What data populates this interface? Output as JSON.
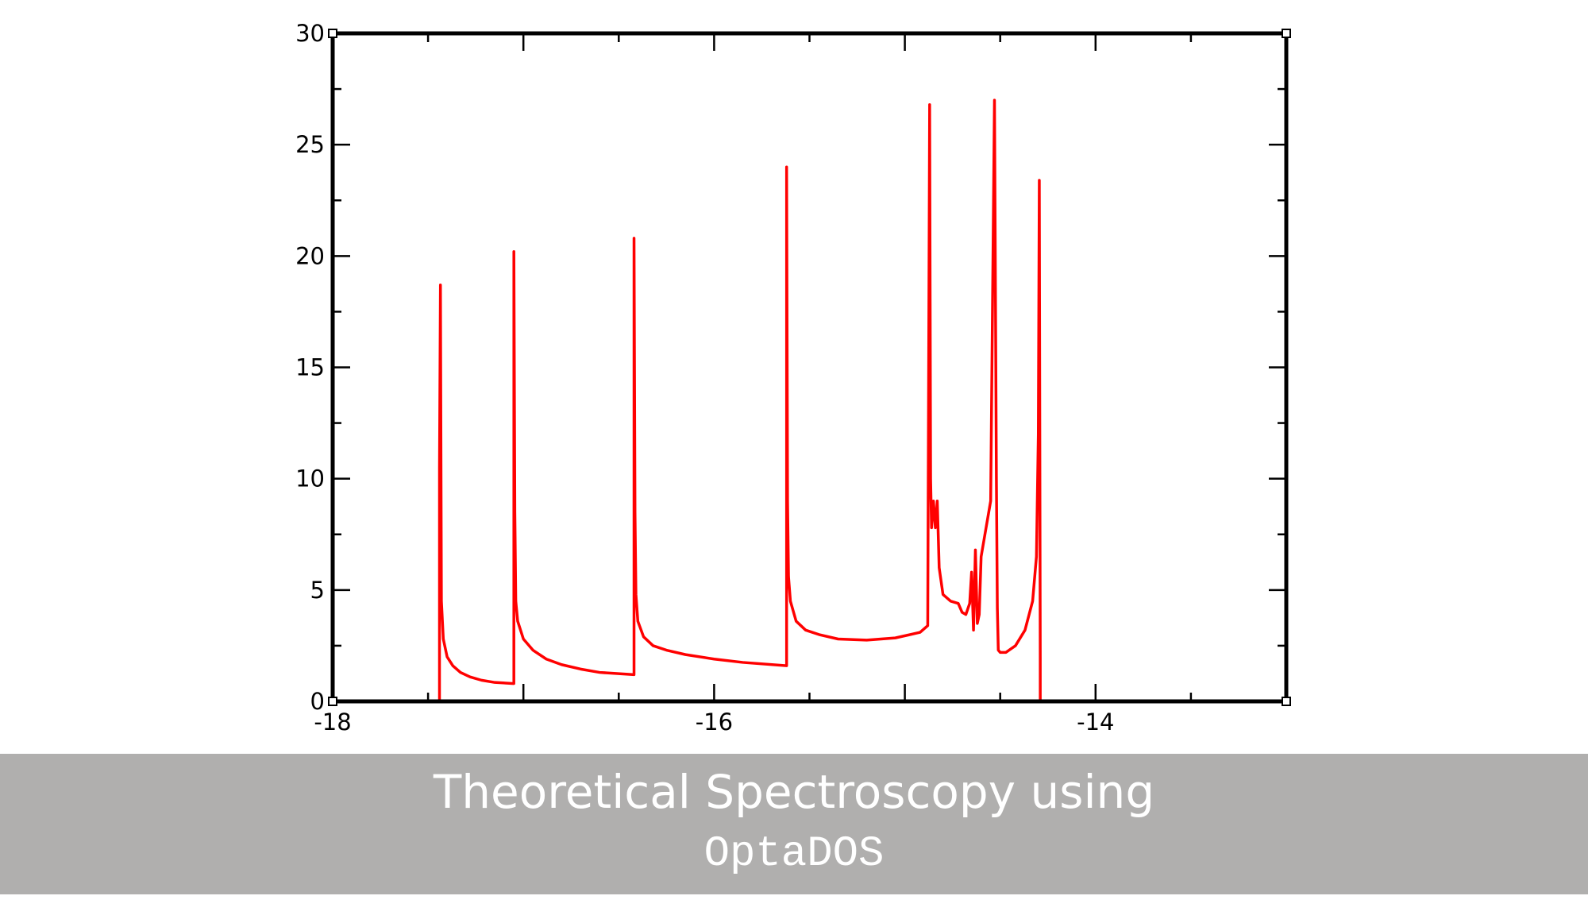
{
  "chart_data": {
    "type": "line",
    "title": "",
    "xlabel": "",
    "ylabel": "",
    "xlim": [
      -18,
      -13
    ],
    "ylim": [
      0,
      30
    ],
    "x_major_ticks": [
      -18,
      -16,
      -14
    ],
    "x_tick_labels": [
      "-18",
      "-16",
      "-14"
    ],
    "y_major_ticks": [
      0,
      5,
      10,
      15,
      20,
      25,
      30
    ],
    "y_tick_labels": [
      "0",
      "5",
      "10",
      "15",
      "20",
      "25",
      "30"
    ],
    "grid": false,
    "line_color": "#ff0000",
    "series": [
      {
        "x": [
          -17.44,
          -17.44,
          -17.435,
          -17.43,
          -17.42,
          -17.4,
          -17.37,
          -17.33,
          -17.28,
          -17.22,
          -17.15,
          -17.05,
          -17.05,
          -17.045,
          -17.04,
          -17.03,
          -17.0,
          -16.95,
          -16.88,
          -16.8,
          -16.7,
          -16.6,
          -16.42,
          -16.42,
          -16.415,
          -16.41,
          -16.4,
          -16.37,
          -16.32,
          -16.25,
          -16.15,
          -16.0,
          -15.85,
          -15.62,
          -15.62,
          -15.615,
          -15.61,
          -15.6,
          -15.57,
          -15.52,
          -15.45,
          -15.35,
          -15.2,
          -15.05,
          -14.92,
          -14.88,
          -14.87,
          -14.865,
          -14.86,
          -14.85,
          -14.84,
          -14.83,
          -14.82,
          -14.8,
          -14.76,
          -14.72,
          -14.7,
          -14.68,
          -14.66,
          -14.65,
          -14.64,
          -14.63,
          -14.62,
          -14.61,
          -14.6,
          -14.58,
          -14.55,
          -14.53,
          -14.52,
          -14.515,
          -14.51,
          -14.5,
          -14.47,
          -14.42,
          -14.37,
          -14.33,
          -14.31,
          -14.3,
          -14.295,
          -14.29,
          -14.29
        ],
        "y": [
          0.0,
          10.5,
          18.7,
          4.5,
          2.8,
          2.0,
          1.6,
          1.3,
          1.1,
          0.95,
          0.85,
          0.8,
          20.2,
          8.5,
          4.5,
          3.6,
          2.8,
          2.3,
          1.9,
          1.65,
          1.45,
          1.3,
          1.2,
          20.8,
          8.5,
          4.8,
          3.6,
          2.9,
          2.5,
          2.3,
          2.1,
          1.9,
          1.75,
          1.6,
          24.0,
          9.0,
          5.6,
          4.5,
          3.6,
          3.2,
          3.0,
          2.8,
          2.75,
          2.85,
          3.1,
          3.4,
          26.8,
          10.0,
          7.8,
          9.0,
          7.8,
          9.0,
          6.0,
          4.8,
          4.5,
          4.4,
          4.0,
          3.9,
          4.4,
          5.8,
          3.2,
          6.8,
          3.5,
          3.9,
          6.5,
          7.5,
          9.0,
          27.0,
          10.0,
          4.2,
          2.3,
          2.2,
          2.2,
          2.5,
          3.2,
          4.5,
          6.5,
          12.0,
          23.4,
          2.0,
          0.0
        ]
      }
    ]
  }
}
